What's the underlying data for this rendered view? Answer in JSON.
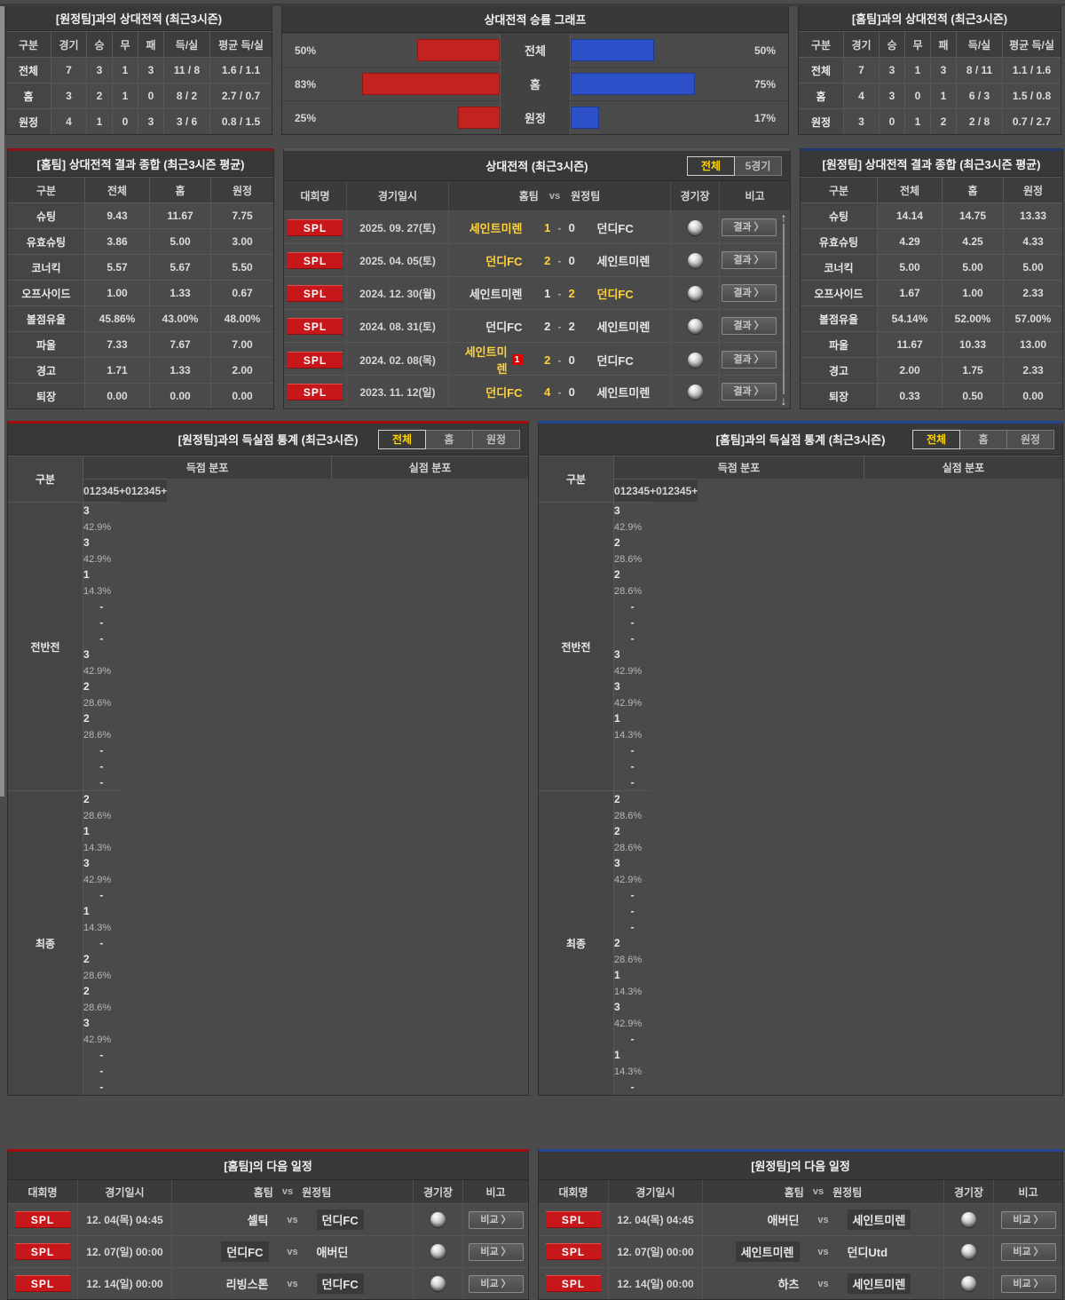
{
  "colors": {
    "red": "#c32320",
    "blue": "#2b50c8",
    "yellow": "#ffd23d",
    "badge_red": "#c8171b"
  },
  "icons": {
    "scroll_up": "↑",
    "scroll_down": "↓",
    "stadium": "globe"
  },
  "vs_table_left": {
    "title": "[원정팀]과의 상대전적 (최근3시즌)",
    "headers": [
      "구분",
      "경기",
      "승",
      "무",
      "패",
      "득/실",
      "평균 득/실"
    ],
    "rows": [
      [
        "전체",
        "7",
        "3",
        "1",
        "3",
        "11 / 8",
        "1.6 / 1.1"
      ],
      [
        "홈",
        "3",
        "2",
        "1",
        "0",
        "8 / 2",
        "2.7 / 0.7"
      ],
      [
        "원정",
        "4",
        "1",
        "0",
        "3",
        "3 / 6",
        "0.8 / 1.5"
      ]
    ]
  },
  "graph": {
    "title": "상대전적 승률 그래프",
    "rows": [
      {
        "label": "전체",
        "left_label": "50%",
        "left_w": "50%",
        "right_label": "50%",
        "right_w": "50%"
      },
      {
        "label": "홈",
        "left_label": "83%",
        "left_w": "83%",
        "right_label": "75%",
        "right_w": "75%"
      },
      {
        "label": "원정",
        "left_label": "25%",
        "left_w": "25%",
        "right_label": "17%",
        "right_w": "17%"
      }
    ]
  },
  "vs_table_right": {
    "title": "[홈팀]과의 상대전적 (최근3시즌)",
    "headers": [
      "구분",
      "경기",
      "승",
      "무",
      "패",
      "득/실",
      "평균 득/실"
    ],
    "rows": [
      [
        "전체",
        "7",
        "3",
        "1",
        "3",
        "8 / 11",
        "1.1 / 1.6"
      ],
      [
        "홈",
        "4",
        "3",
        "0",
        "1",
        "6 / 3",
        "1.5 / 0.8"
      ],
      [
        "원정",
        "3",
        "0",
        "1",
        "2",
        "2 / 8",
        "0.7 / 2.7"
      ]
    ]
  },
  "summary_home": {
    "title": "[홈팀] 상대전적 결과 종합 (최근3시즌 평균)",
    "headers": [
      "구분",
      "전체",
      "홈",
      "원정"
    ],
    "rows": [
      [
        "슈팅",
        "9.43",
        "11.67",
        "7.75"
      ],
      [
        "유효슈팅",
        "3.86",
        "5.00",
        "3.00"
      ],
      [
        "코너킥",
        "5.57",
        "5.67",
        "5.50"
      ],
      [
        "오프사이드",
        "1.00",
        "1.33",
        "0.67"
      ],
      [
        "볼점유율",
        "45.86%",
        "43.00%",
        "48.00%"
      ],
      [
        "파울",
        "7.33",
        "7.67",
        "7.00"
      ],
      [
        "경고",
        "1.71",
        "1.33",
        "2.00"
      ],
      [
        "퇴장",
        "0.00",
        "0.00",
        "0.00"
      ]
    ]
  },
  "summary_away": {
    "title": "[원정팀] 상대전적 결과 종합 (최근3시즌 평균)",
    "headers": [
      "구분",
      "전체",
      "홈",
      "원정"
    ],
    "rows": [
      [
        "슈팅",
        "14.14",
        "14.75",
        "13.33"
      ],
      [
        "유효슈팅",
        "4.29",
        "4.25",
        "4.33"
      ],
      [
        "코너킥",
        "5.00",
        "5.00",
        "5.00"
      ],
      [
        "오프사이드",
        "1.67",
        "1.00",
        "2.33"
      ],
      [
        "볼점유율",
        "54.14%",
        "52.00%",
        "57.00%"
      ],
      [
        "파울",
        "11.67",
        "10.33",
        "13.00"
      ],
      [
        "경고",
        "2.00",
        "1.75",
        "2.33"
      ],
      [
        "퇴장",
        "0.33",
        "0.50",
        "0.00"
      ]
    ]
  },
  "h2h": {
    "title": "상대전적 (최근3시즌)",
    "tabs": [
      {
        "label": "전체",
        "state": "active"
      },
      {
        "label": "5경기",
        "state": ""
      }
    ],
    "headers": {
      "league": "대회명",
      "date": "경기일시",
      "home": "홈팀",
      "vs": "vs",
      "away": "원정팀",
      "stadium": "경기장",
      "note": "비고"
    },
    "button_label": "결과 〉",
    "dash": "-",
    "rows": [
      {
        "league": "SPL",
        "date": "2025. 09. 27(토)",
        "home": "세인트미렌",
        "rc": "",
        "s1": "1",
        "s2": "0",
        "away": "던디FC",
        "home_state": "win",
        "s1_state": "win",
        "s2_state": "",
        "away_state": ""
      },
      {
        "league": "SPL",
        "date": "2025. 04. 05(토)",
        "home": "던디FC",
        "rc": "",
        "s1": "2",
        "s2": "0",
        "away": "세인트미렌",
        "home_state": "win",
        "s1_state": "win",
        "s2_state": "",
        "away_state": ""
      },
      {
        "league": "SPL",
        "date": "2024. 12. 30(월)",
        "home": "세인트미렌",
        "rc": "",
        "s1": "1",
        "s2": "2",
        "away": "던디FC",
        "home_state": "",
        "s1_state": "",
        "s2_state": "win",
        "away_state": "win"
      },
      {
        "league": "SPL",
        "date": "2024. 08. 31(토)",
        "home": "던디FC",
        "rc": "",
        "s1": "2",
        "s2": "2",
        "away": "세인트미렌",
        "home_state": "",
        "s1_state": "",
        "s2_state": "",
        "away_state": ""
      },
      {
        "league": "SPL",
        "date": "2024. 02. 08(목)",
        "home": "세인트미렌",
        "rc": "1",
        "s1": "2",
        "s2": "0",
        "away": "던디FC",
        "home_state": "win",
        "s1_state": "win",
        "s2_state": "",
        "away_state": ""
      },
      {
        "league": "SPL",
        "date": "2023. 11. 12(일)",
        "home": "던디FC",
        "rc": "",
        "s1": "4",
        "s2": "0",
        "away": "세인트미렌",
        "home_state": "win",
        "s1_state": "win",
        "s2_state": "",
        "away_state": ""
      }
    ]
  },
  "stats_left": {
    "title": "[원정팀]과의 득실점 통계 (최근3시즌)",
    "tabs": [
      {
        "label": "전체",
        "state": "active"
      },
      {
        "label": "홈",
        "state": ""
      },
      {
        "label": "원정",
        "state": ""
      }
    ],
    "col_label": "구분",
    "group1": "득점 분포",
    "group2": "실점 분포",
    "cols": [
      "0",
      "1",
      "2",
      "3",
      "4",
      "5+",
      "0",
      "1",
      "2",
      "3",
      "4",
      "5+"
    ],
    "rows": [
      {
        "label": "전반전",
        "cells": [
          {
            "n": "3",
            "p": "42.9%"
          },
          {
            "n": "3",
            "p": "42.9%"
          },
          {
            "n": "1",
            "p": "14.3%"
          },
          {
            "n": "-",
            "p": ""
          },
          {
            "n": "-",
            "p": ""
          },
          {
            "n": "-",
            "p": ""
          },
          {
            "n": "3",
            "p": "42.9%"
          },
          {
            "n": "2",
            "p": "28.6%"
          },
          {
            "n": "2",
            "p": "28.6%"
          },
          {
            "n": "-",
            "p": ""
          },
          {
            "n": "-",
            "p": ""
          },
          {
            "n": "-",
            "p": ""
          }
        ]
      },
      {
        "label": "최종",
        "cells": [
          {
            "n": "2",
            "p": "28.6%"
          },
          {
            "n": "1",
            "p": "14.3%"
          },
          {
            "n": "3",
            "p": "42.9%"
          },
          {
            "n": "-",
            "p": ""
          },
          {
            "n": "1",
            "p": "14.3%"
          },
          {
            "n": "-",
            "p": ""
          },
          {
            "n": "2",
            "p": "28.6%"
          },
          {
            "n": "2",
            "p": "28.6%"
          },
          {
            "n": "3",
            "p": "42.9%"
          },
          {
            "n": "-",
            "p": ""
          },
          {
            "n": "-",
            "p": ""
          },
          {
            "n": "-",
            "p": ""
          }
        ]
      }
    ]
  },
  "stats_right": {
    "title": "[홈팀]과의 득실점 통계 (최근3시즌)",
    "tabs": [
      {
        "label": "전체",
        "state": "active"
      },
      {
        "label": "홈",
        "state": ""
      },
      {
        "label": "원정",
        "state": ""
      }
    ],
    "col_label": "구분",
    "group1": "득점 분포",
    "group2": "실점 분포",
    "cols": [
      "0",
      "1",
      "2",
      "3",
      "4",
      "5+",
      "0",
      "1",
      "2",
      "3",
      "4",
      "5+"
    ],
    "rows": [
      {
        "label": "전반전",
        "cells": [
          {
            "n": "3",
            "p": "42.9%"
          },
          {
            "n": "2",
            "p": "28.6%"
          },
          {
            "n": "2",
            "p": "28.6%"
          },
          {
            "n": "-",
            "p": ""
          },
          {
            "n": "-",
            "p": ""
          },
          {
            "n": "-",
            "p": ""
          },
          {
            "n": "3",
            "p": "42.9%"
          },
          {
            "n": "3",
            "p": "42.9%"
          },
          {
            "n": "1",
            "p": "14.3%"
          },
          {
            "n": "-",
            "p": ""
          },
          {
            "n": "-",
            "p": ""
          },
          {
            "n": "-",
            "p": ""
          }
        ]
      },
      {
        "label": "최종",
        "cells": [
          {
            "n": "2",
            "p": "28.6%"
          },
          {
            "n": "2",
            "p": "28.6%"
          },
          {
            "n": "3",
            "p": "42.9%"
          },
          {
            "n": "-",
            "p": ""
          },
          {
            "n": "-",
            "p": ""
          },
          {
            "n": "-",
            "p": ""
          },
          {
            "n": "2",
            "p": "28.6%"
          },
          {
            "n": "1",
            "p": "14.3%"
          },
          {
            "n": "3",
            "p": "42.9%"
          },
          {
            "n": "-",
            "p": ""
          },
          {
            "n": "1",
            "p": "14.3%"
          },
          {
            "n": "-",
            "p": ""
          }
        ]
      }
    ]
  },
  "schedule_home": {
    "title": "[홈팀]의 다음 일정",
    "headers": {
      "league": "대회명",
      "date": "경기일시",
      "home": "홈팀",
      "vs": "vs",
      "away": "원정팀",
      "stadium": "경기장",
      "note": "비고"
    },
    "vs_label": "vs",
    "button_label": "비교 〉",
    "rows": [
      {
        "league": "SPL",
        "date": "12. 04(목) 04:45",
        "home": "셀틱",
        "away": "던디FC",
        "home_state": "",
        "away_state": "hl"
      },
      {
        "league": "SPL",
        "date": "12. 07(일) 00:00",
        "home": "던디FC",
        "away": "애버딘",
        "home_state": "hl",
        "away_state": ""
      },
      {
        "league": "SPL",
        "date": "12. 14(일) 00:00",
        "home": "리빙스톤",
        "away": "던디FC",
        "home_state": "",
        "away_state": "hl"
      }
    ]
  },
  "schedule_away": {
    "title": "[원정팀]의 다음 일정",
    "headers": {
      "league": "대회명",
      "date": "경기일시",
      "home": "홈팀",
      "vs": "vs",
      "away": "원정팀",
      "stadium": "경기장",
      "note": "비고"
    },
    "vs_label": "vs",
    "button_label": "비교 〉",
    "rows": [
      {
        "league": "SPL",
        "date": "12. 04(목) 04:45",
        "home": "애버딘",
        "away": "세인트미렌",
        "home_state": "",
        "away_state": "hl"
      },
      {
        "league": "SPL",
        "date": "12. 07(일) 00:00",
        "home": "세인트미렌",
        "away": "던디Utd",
        "home_state": "hl",
        "away_state": ""
      },
      {
        "league": "SPL",
        "date": "12. 14(일) 00:00",
        "home": "하츠",
        "away": "세인트미렌",
        "home_state": "",
        "away_state": "hl"
      }
    ]
  }
}
